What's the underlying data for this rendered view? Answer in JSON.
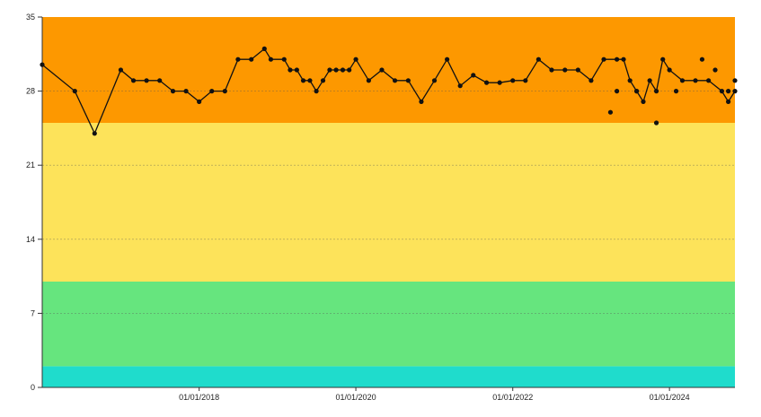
{
  "chart_data": {
    "type": "line",
    "title": "",
    "xlabel": "",
    "ylabel": "",
    "ylim": [
      0,
      35
    ],
    "xlim": [
      "2016-01-01",
      "2024-11-01"
    ],
    "y_ticks": [
      0,
      7,
      14,
      21,
      28,
      35
    ],
    "x_ticks": [
      {
        "date": "2018-01-01",
        "label": "01/01/2018"
      },
      {
        "date": "2020-01-01",
        "label": "01/01/2020"
      },
      {
        "date": "2022-01-01",
        "label": "01/01/2022"
      },
      {
        "date": "2024-01-01",
        "label": "01/01/2024"
      }
    ],
    "grid": true,
    "bands": [
      {
        "from": 0,
        "to": 2,
        "color": "#1fdccc"
      },
      {
        "from": 2,
        "to": 10,
        "color": "#66e57e"
      },
      {
        "from": 10,
        "to": 25,
        "color": "#fde35a"
      },
      {
        "from": 25,
        "to": 35,
        "color": "#fd9800"
      }
    ],
    "line_color": "#111111",
    "series": [
      {
        "x": [
          "2016-01-01",
          "2016-06-01",
          "2016-09-01",
          "2017-01-01",
          "2017-03-01",
          "2017-05-01",
          "2017-07-01",
          "2017-09-01",
          "2017-11-01",
          "2018-01-01",
          "2018-03-01",
          "2018-05-01",
          "2018-07-01",
          "2018-09-01",
          "2018-11-01",
          "2018-12-01",
          "2019-02-01",
          "2019-03-01",
          "2019-04-01",
          "2019-05-01",
          "2019-06-01",
          "2019-07-01",
          "2019-08-01",
          "2019-09-01",
          "2019-10-01",
          "2019-11-01",
          "2019-12-01",
          "2020-01-01",
          "2020-03-01",
          "2020-05-01",
          "2020-07-01",
          "2020-09-01",
          "2020-11-01",
          "2021-01-01",
          "2021-03-01",
          "2021-05-01",
          "2021-07-01",
          "2021-09-01",
          "2021-11-01",
          "2022-01-01",
          "2022-03-01",
          "2022-05-01",
          "2022-07-01",
          "2022-09-01",
          "2022-11-01",
          "2023-01-01",
          "2023-03-01",
          "2023-05-01",
          "2023-06-01",
          "2023-07-01",
          "2023-08-01",
          "2023-09-01",
          "2023-10-01",
          "2023-11-01",
          "2023-12-01",
          "2024-01-01",
          "2024-03-01",
          "2024-05-01",
          "2024-07-01",
          "2024-09-01",
          "2024-10-01",
          "2024-11-01"
        ],
        "y": [
          30.5,
          28,
          24,
          30,
          29,
          29,
          29,
          28,
          28,
          27,
          28,
          28,
          31,
          31,
          32,
          31,
          31,
          30,
          30,
          29,
          29,
          28,
          29,
          30,
          30,
          30,
          30,
          31,
          29,
          30,
          29,
          29,
          27,
          29,
          31,
          28.5,
          29.5,
          28.8,
          28.8,
          29,
          29,
          31,
          30,
          30,
          30,
          29,
          31,
          31,
          31,
          29,
          28,
          27,
          29,
          28,
          31,
          30,
          29,
          29,
          29,
          28,
          27,
          28
        ]
      }
    ],
    "extra_points": [
      {
        "x": "2023-04-01",
        "y": 26
      },
      {
        "x": "2023-05-01",
        "y": 28
      },
      {
        "x": "2023-08-01",
        "y": 28
      },
      {
        "x": "2023-11-01",
        "y": 25
      },
      {
        "x": "2024-02-01",
        "y": 28
      },
      {
        "x": "2024-06-01",
        "y": 31
      },
      {
        "x": "2024-08-01",
        "y": 30
      },
      {
        "x": "2024-10-01",
        "y": 28
      },
      {
        "x": "2024-11-01",
        "y": 29
      }
    ]
  }
}
